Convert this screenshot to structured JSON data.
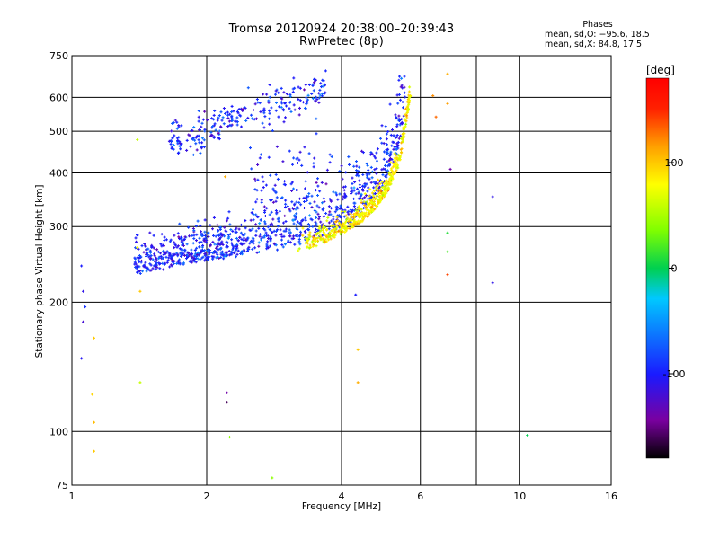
{
  "header": {
    "title": "Tromsø 20120924 20:38:00–20:39:43",
    "subtitle": "RwPretec (8p)"
  },
  "phases_box": {
    "title": "Phases",
    "line_o": "mean, sd,O: −95.6, 18.5",
    "line_x": "mean, sd,X:  84.8, 17.5"
  },
  "chart_data": {
    "type": "scatter",
    "title": "Tromsø 20120924 20:38:00–20:39:43",
    "subtitle": "RwPretec (8p)",
    "xlabel": "Frequency [MHz]",
    "ylabel": "Stationary phase Virtual Height [km]",
    "x_scale": "log",
    "y_scale": "log",
    "xlim": [
      1,
      16
    ],
    "ylim": [
      75,
      750
    ],
    "x_ticks": [
      1,
      2,
      4,
      6,
      10,
      16
    ],
    "x_tick_labels": [
      "1",
      "2",
      "4",
      "6",
      "10",
      "16"
    ],
    "x_gridlines": [
      2,
      4,
      6,
      8,
      10
    ],
    "y_ticks": [
      75,
      100,
      200,
      300,
      400,
      500,
      600,
      750
    ],
    "y_tick_labels": [
      "75",
      "100",
      "200",
      "300",
      "400",
      "500",
      "600",
      "750"
    ],
    "y_gridlines": [
      100,
      200,
      300,
      400,
      500,
      600
    ],
    "grid": true,
    "colorbar": {
      "label": "[deg]",
      "range": [
        -180,
        180
      ],
      "tick_values": [
        100,
        0,
        -100
      ],
      "tick_labels": [
        "100",
        "0",
        "-100"
      ],
      "colors": [
        "#000000",
        "#7a00a0",
        "#1a1aff",
        "#00c8ff",
        "#00d050",
        "#80ff00",
        "#ffff00",
        "#ffa000",
        "#ff2000",
        "#ff0000"
      ]
    },
    "o_mode": {
      "phase_mean_deg": -95.6,
      "phase_sd_deg": 18.5,
      "trace": {
        "x": [
          1.38,
          1.5,
          1.7,
          2.0,
          2.4,
          2.8,
          3.2,
          3.6,
          4.0,
          4.5,
          5.0,
          5.3,
          5.55
        ],
        "y": [
          232,
          236,
          242,
          250,
          258,
          265,
          272,
          282,
          298,
          325,
          370,
          430,
          560
        ]
      },
      "upper_arc": {
        "x": [
          1.65,
          1.9,
          2.3,
          2.6,
          3.0,
          3.4,
          3.7
        ],
        "y": [
          475,
          490,
          540,
          560,
          590,
          610,
          640
        ]
      }
    },
    "x_mode": {
      "phase_mean_deg": 84.8,
      "phase_sd_deg": 17.5,
      "trace": {
        "x": [
          3.2,
          3.6,
          4.0,
          4.5,
          5.0,
          5.4,
          5.7
        ],
        "y": [
          262,
          272,
          288,
          310,
          350,
          420,
          600
        ]
      }
    },
    "scattered_points": [
      {
        "x": 1.05,
        "y": 243,
        "phase": -100
      },
      {
        "x": 1.06,
        "y": 212,
        "phase": -110
      },
      {
        "x": 1.07,
        "y": 195,
        "phase": -90
      },
      {
        "x": 1.06,
        "y": 180,
        "phase": -120
      },
      {
        "x": 1.05,
        "y": 148,
        "phase": -105
      },
      {
        "x": 1.12,
        "y": 165,
        "phase": 100
      },
      {
        "x": 1.11,
        "y": 122,
        "phase": 95
      },
      {
        "x": 1.12,
        "y": 105,
        "phase": 105
      },
      {
        "x": 1.12,
        "y": 90,
        "phase": 100
      },
      {
        "x": 1.4,
        "y": 478,
        "phase": 60
      },
      {
        "x": 1.4,
        "y": 268,
        "phase": 80
      },
      {
        "x": 1.42,
        "y": 212,
        "phase": 100
      },
      {
        "x": 1.42,
        "y": 130,
        "phase": 60
      },
      {
        "x": 2.2,
        "y": 392,
        "phase": 110
      },
      {
        "x": 2.22,
        "y": 123,
        "phase": -140
      },
      {
        "x": 2.22,
        "y": 117,
        "phase": -160
      },
      {
        "x": 2.25,
        "y": 97,
        "phase": 40
      },
      {
        "x": 2.8,
        "y": 78,
        "phase": 40
      },
      {
        "x": 4.3,
        "y": 208,
        "phase": -100
      },
      {
        "x": 4.35,
        "y": 155,
        "phase": 100
      },
      {
        "x": 4.35,
        "y": 130,
        "phase": 110
      },
      {
        "x": 6.4,
        "y": 605,
        "phase": 120
      },
      {
        "x": 6.5,
        "y": 540,
        "phase": 130
      },
      {
        "x": 6.9,
        "y": 680,
        "phase": 110
      },
      {
        "x": 6.9,
        "y": 580,
        "phase": 115
      },
      {
        "x": 7.0,
        "y": 408,
        "phase": -140
      },
      {
        "x": 6.9,
        "y": 290,
        "phase": 10
      },
      {
        "x": 6.9,
        "y": 262,
        "phase": 20
      },
      {
        "x": 6.9,
        "y": 232,
        "phase": 140
      },
      {
        "x": 8.7,
        "y": 352,
        "phase": -110
      },
      {
        "x": 8.7,
        "y": 222,
        "phase": -110
      },
      {
        "x": 10.4,
        "y": 98,
        "phase": 0
      }
    ]
  }
}
